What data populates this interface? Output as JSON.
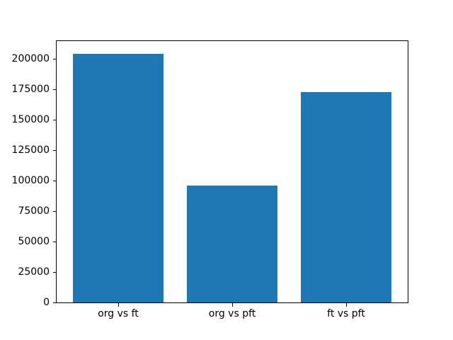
{
  "chart_data": {
    "type": "bar",
    "title": "",
    "xlabel": "",
    "ylabel": "",
    "categories": [
      "org vs ft",
      "org vs pft",
      "ft vs pft"
    ],
    "values": [
      204500,
      95800,
      173000
    ],
    "bar_color": "#1f77b4",
    "bar_width": 0.8,
    "ylim": [
      0,
      214700
    ],
    "xlim": [
      -0.54,
      2.54
    ],
    "yticks": [
      0,
      25000,
      50000,
      75000,
      100000,
      125000,
      150000,
      175000,
      200000
    ],
    "ytick_labels": [
      "0",
      "25000",
      "50000",
      "75000",
      "100000",
      "125000",
      "150000",
      "175000",
      "200000"
    ],
    "grid": false,
    "legend": null,
    "spine_color": "#000000",
    "background_color": "#ffffff"
  }
}
